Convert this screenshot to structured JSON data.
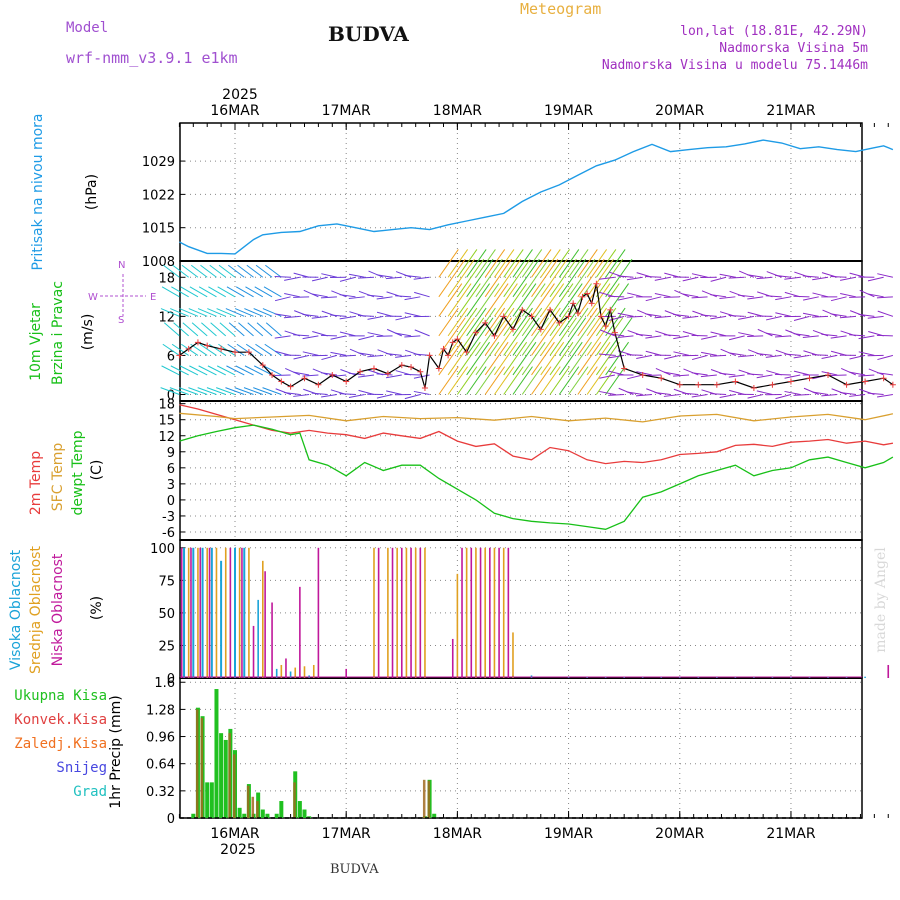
{
  "header": {
    "model_label": "Model",
    "model_name": "wrf-nmm_v3.9.1 e1km",
    "title": "BUDVA",
    "meteogram": "Meteogram",
    "lonlat": "lon,lat (18.81E, 42.29N)",
    "altitude": "Nadmorska Visina 5m",
    "model_altitude": "Nadmorska Visina u modelu 75.1446m"
  },
  "footer": {
    "title": "BUDVA",
    "credit": "made by Angel"
  },
  "time_axis": {
    "year": "2025",
    "days": [
      "16MAR",
      "17MAR",
      "18MAR",
      "19MAR",
      "20MAR",
      "21MAR"
    ]
  },
  "colors": {
    "pressure": "#1e9be6",
    "wind_speed": "#000000",
    "t2m": "#e83c3c",
    "sfc": "#d9a030",
    "dewpt": "#18c018",
    "high_cloud": "#1aa3d8",
    "mid_cloud": "#e0a020",
    "low_cloud": "#c0189b",
    "total_precip": "#20c020",
    "conv_precip": "#e04040",
    "frozen_precip": "#f07020",
    "snow": "#4848e0",
    "hail": "#20c0c0"
  },
  "panels": {
    "pressure": {
      "labels": [
        "Pritisak na nivou mora"
      ],
      "unit": "(hPa)",
      "ticks": [
        "1008",
        "1015",
        "1022",
        "1029"
      ]
    },
    "wind": {
      "labels": [
        "10m Vjetar",
        "Brzina i Pravac"
      ],
      "unit": "(m/s)",
      "ticks": [
        "0",
        "6",
        "12",
        "18"
      ],
      "compass": {
        "w": "W",
        "e": "E",
        "n": "N",
        "s": "S"
      }
    },
    "temperature": {
      "labels": [
        "2m Temp",
        "SFC Temp",
        "dewpt Temp"
      ],
      "unit": "(C)",
      "ticks": [
        "-6",
        "-3",
        "0",
        "3",
        "6",
        "9",
        "12",
        "15",
        "18"
      ]
    },
    "cloud": {
      "labels": [
        "Visoka Oblacnost",
        "Srednja Oblacnost",
        "Niska Oblacnost"
      ],
      "unit": "(%)",
      "ticks": [
        "0",
        "25",
        "50",
        "75",
        "100"
      ]
    },
    "precip": {
      "legend": [
        "Ukupna Kisa",
        "Konvek.Kisa",
        "Zaledj.Kisa",
        "Snijeg",
        "Grad"
      ],
      "ylabel": "1hr Precip (mm)",
      "ticks": [
        "0",
        "0.32",
        "0.64",
        "0.96",
        "1.28",
        "1.6"
      ]
    }
  },
  "chart_data": [
    {
      "type": "line",
      "title": "Pritisak na nivou mora",
      "ylabel": "(hPa)",
      "ylim": [
        1008,
        1037
      ],
      "x_unit": "hours since 2025-03-16 00:00 (approx.)",
      "series": [
        {
          "name": "Pritisak na nivou mora",
          "x": [
            -12,
            -10,
            -6,
            -3,
            0,
            2,
            4,
            6,
            10,
            14,
            18,
            22,
            26,
            30,
            34,
            38,
            42,
            46,
            50,
            54,
            58,
            62,
            66,
            70,
            74,
            78,
            82,
            86,
            90,
            94,
            98,
            102,
            106,
            110,
            114,
            118,
            122,
            126,
            130,
            134,
            138,
            140,
            142
          ],
          "values": [
            1012,
            1011,
            1009.6,
            1009.6,
            1009.5,
            1011,
            1012.5,
            1013.5,
            1014,
            1014.2,
            1015.4,
            1015.8,
            1015,
            1014.2,
            1014.6,
            1015,
            1014.6,
            1015.6,
            1016.4,
            1017.2,
            1018,
            1020.5,
            1022.5,
            1024,
            1026,
            1028,
            1029.2,
            1031,
            1032.5,
            1031,
            1031.4,
            1031.8,
            1032,
            1032.6,
            1033.4,
            1032.8,
            1031.6,
            1032,
            1031.4,
            1031,
            1031.8,
            1032.2,
            1031.4
          ]
        }
      ]
    },
    {
      "type": "line",
      "title": "10m Vjetar Brzina i Pravac",
      "ylabel": "(m/s)",
      "ylim": [
        -1,
        20.5
      ],
      "series": [
        {
          "name": "Brzina",
          "x": [
            -12,
            -10,
            -8,
            -6,
            -3,
            0,
            3,
            6,
            8,
            10,
            12,
            15,
            18,
            21,
            24,
            27,
            30,
            33,
            36,
            38,
            40,
            41,
            42,
            44,
            45,
            46,
            47,
            48,
            50,
            52,
            54,
            56,
            58,
            60,
            62,
            64,
            66,
            68,
            70,
            72,
            73,
            74,
            75,
            76,
            77,
            78,
            79,
            80,
            81,
            82,
            84,
            88,
            92,
            96,
            100,
            104,
            108,
            112,
            116,
            120,
            124,
            128,
            132,
            136,
            140,
            142
          ],
          "values": [
            6,
            7,
            8,
            7.5,
            7,
            6.5,
            6.5,
            4.5,
            3,
            2,
            1.2,
            2.5,
            1.5,
            3,
            2,
            3.5,
            4,
            3.2,
            4.5,
            4.2,
            3.5,
            1,
            6,
            4,
            7,
            6,
            8,
            8.5,
            6.5,
            9.5,
            11,
            9,
            12,
            10,
            13,
            12,
            10,
            13,
            11,
            12,
            14,
            12.5,
            15,
            15.5,
            14,
            17,
            12,
            10.5,
            13,
            9.5,
            4,
            3,
            2.5,
            1.5,
            1.5,
            1.5,
            2,
            1,
            1.5,
            2,
            2.5,
            3,
            1.5,
            2,
            2.5,
            1.5
          ]
        }
      ]
    },
    {
      "type": "line",
      "title": "Temperature",
      "ylabel": "(C)",
      "ylim": [
        -7.5,
        18.5
      ],
      "series": [
        {
          "name": "2m Temp",
          "x": [
            -12,
            -8,
            -4,
            0,
            4,
            8,
            12,
            16,
            20,
            24,
            28,
            32,
            36,
            40,
            44,
            48,
            52,
            56,
            60,
            64,
            68,
            72,
            76,
            80,
            84,
            88,
            92,
            96,
            100,
            104,
            108,
            112,
            116,
            120,
            124,
            128,
            132,
            136,
            140,
            142
          ],
          "values": [
            17.8,
            17,
            16,
            15,
            14,
            13,
            12.5,
            13,
            12.5,
            12.2,
            11.5,
            12.5,
            12,
            11.5,
            12.8,
            11,
            10,
            10.5,
            8.2,
            7.5,
            9.8,
            9.2,
            7.5,
            6.8,
            7.2,
            7,
            7.5,
            8.5,
            8.7,
            9,
            10.2,
            10.4,
            10,
            10.8,
            11,
            11.3,
            10.6,
            11,
            10.3,
            10.6
          ]
        },
        {
          "name": "SFC Temp",
          "x": [
            -12,
            -4,
            0,
            8,
            16,
            24,
            32,
            40,
            48,
            56,
            64,
            72,
            80,
            88,
            96,
            104,
            112,
            120,
            128,
            136,
            142
          ],
          "values": [
            16.2,
            15.6,
            15.2,
            15.5,
            15.8,
            14.8,
            15.6,
            15.2,
            15.4,
            14.9,
            15.6,
            14.8,
            15.3,
            14.6,
            15.7,
            16,
            14.8,
            15.5,
            16,
            15,
            16.1
          ]
        },
        {
          "name": "dewpt Temp",
          "x": [
            -12,
            -8,
            -4,
            0,
            4,
            8,
            12,
            14,
            16,
            20,
            24,
            28,
            32,
            36,
            40,
            44,
            48,
            52,
            56,
            60,
            64,
            68,
            72,
            76,
            80,
            84,
            88,
            92,
            96,
            100,
            104,
            108,
            112,
            116,
            120,
            124,
            128,
            132,
            136,
            140,
            142
          ],
          "values": [
            11,
            12,
            12.8,
            13.5,
            14,
            13.2,
            12.2,
            12.5,
            7.5,
            6.5,
            4.5,
            7,
            5.5,
            6.5,
            6.5,
            4,
            2,
            0,
            -2.5,
            -3.5,
            -4,
            -4.3,
            -4.5,
            -5,
            -5.5,
            -4,
            0.5,
            1.5,
            3,
            4.5,
            5.5,
            6.5,
            4.5,
            5.5,
            6,
            7.5,
            8,
            7,
            6,
            7,
            8
          ]
        }
      ]
    },
    {
      "type": "bar",
      "title": "Oblacnost",
      "ylabel": "(%)",
      "ylim": [
        0,
        100
      ],
      "series": [
        {
          "name": "Visoka Oblacnost",
          "x": [
            -11,
            -9,
            -7,
            -5,
            -3,
            0,
            2,
            5,
            9,
            12,
            16,
            50,
            52,
            54,
            60,
            64,
            72,
            76,
            80,
            84,
            88,
            92,
            96,
            100,
            104,
            108,
            112,
            116,
            120,
            124,
            128,
            132,
            136,
            141
          ],
          "values": [
            100,
            100,
            100,
            100,
            90,
            100,
            100,
            60,
            7,
            5,
            2,
            2,
            2,
            2,
            2,
            2,
            1,
            1,
            1,
            1,
            1,
            1,
            1,
            1,
            1,
            1,
            1,
            1,
            1,
            1,
            1,
            1,
            1,
            1
          ]
        },
        {
          "name": "Srednja Oblacnost",
          "x": [
            -10,
            -8,
            -6,
            -4,
            -2,
            1,
            3,
            6,
            10,
            13,
            15,
            17,
            30,
            33,
            35,
            37,
            39,
            41,
            48,
            50,
            52,
            54,
            56,
            58,
            60
          ],
          "values": [
            100,
            100,
            100,
            100,
            100,
            100,
            100,
            90,
            10,
            8,
            9,
            10,
            100,
            100,
            100,
            100,
            100,
            100,
            80,
            100,
            100,
            100,
            100,
            100,
            35
          ]
        },
        {
          "name": "Niska Oblacnost",
          "x": [
            -11.5,
            -9.5,
            -7.5,
            -5.5,
            -1,
            1.5,
            4,
            6.5,
            8,
            11,
            14,
            18,
            24,
            31,
            34,
            36,
            38,
            40,
            47,
            49,
            51,
            53,
            55,
            57,
            59,
            141
          ],
          "values": [
            100,
            100,
            100,
            100,
            100,
            100,
            40,
            82,
            58,
            15,
            70,
            100,
            7,
            100,
            100,
            100,
            100,
            100,
            30,
            100,
            100,
            100,
            100,
            100,
            100,
            10
          ]
        }
      ]
    },
    {
      "type": "bar",
      "title": "1hr Precip",
      "ylabel": "1hr Precip (mm)",
      "ylim": [
        0,
        1.6
      ],
      "series": [
        {
          "name": "Ukupna Kisa",
          "x": [
            -9,
            -8,
            -7,
            -6,
            -5,
            -4,
            -3,
            -2,
            -1,
            0,
            1,
            2,
            3,
            4,
            5,
            6,
            7,
            9,
            10,
            13,
            14,
            15,
            16,
            41,
            42,
            43
          ],
          "values": [
            0.05,
            1.3,
            1.2,
            0.42,
            0.42,
            1.52,
            1.0,
            0.92,
            1.05,
            0.8,
            0.12,
            0.05,
            0.4,
            0.05,
            0.3,
            0.1,
            0.05,
            0.05,
            0.2,
            0.55,
            0.2,
            0.1,
            0.02,
            0.02,
            0.45,
            0.05
          ]
        },
        {
          "name": "Konvek.Kisa",
          "x": [
            -8,
            -7,
            -1,
            0,
            3,
            4,
            5,
            13,
            41,
            42
          ],
          "values": [
            1.28,
            1.18,
            1.0,
            0.75,
            0.38,
            0.25,
            0.2,
            0.42,
            0.45,
            0.44
          ]
        },
        {
          "name": "Zaledj.Kisa",
          "x": [],
          "values": []
        },
        {
          "name": "Snijeg",
          "x": [],
          "values": []
        },
        {
          "name": "Grad",
          "x": [],
          "values": []
        }
      ]
    }
  ]
}
